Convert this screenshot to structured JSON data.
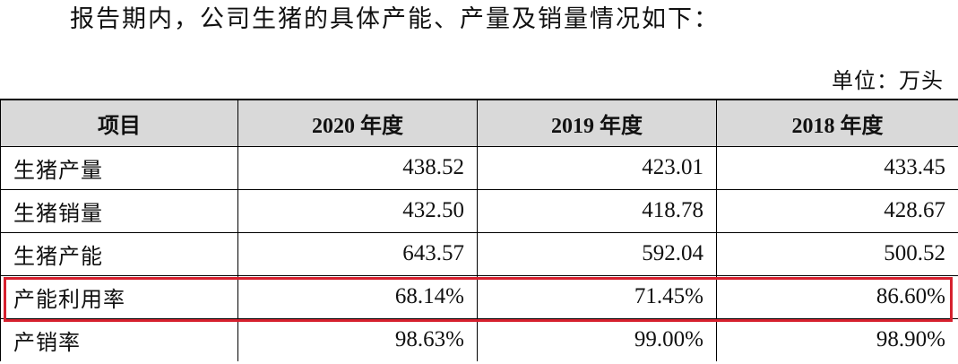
{
  "intro_text": "报告期内，公司生猪的具体产能、产量及销量情况如下：",
  "unit_label": "单位：万头",
  "table": {
    "headers": [
      "项目",
      "2020 年度",
      "2019 年度",
      "2018 年度"
    ],
    "rows": [
      {
        "label": "生猪产量",
        "values": [
          "438.52",
          "423.01",
          "433.45"
        ]
      },
      {
        "label": "生猪销量",
        "values": [
          "432.50",
          "418.78",
          "428.67"
        ]
      },
      {
        "label": "生猪产能",
        "values": [
          "643.57",
          "592.04",
          "500.52"
        ]
      },
      {
        "label": "产能利用率",
        "values": [
          "68.14%",
          "71.45%",
          "86.60%"
        ]
      },
      {
        "label": "产销率",
        "values": [
          "98.63%",
          "99.00%",
          "98.90%"
        ]
      }
    ]
  },
  "highlight_color": "#d6202e",
  "header_bg_color": "#d9d9d9"
}
